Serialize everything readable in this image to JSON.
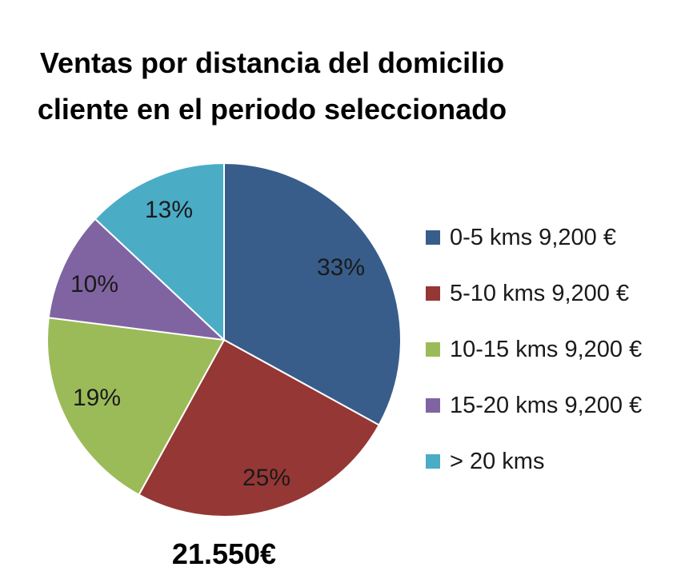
{
  "chart_data": {
    "type": "pie",
    "title_lines": [
      "Ventas por distancia del domicilio",
      "cliente en el periodo seleccionado"
    ],
    "total_label": "21.550€",
    "slices": [
      {
        "name": "0-5 kms 9,200 €",
        "value": 33,
        "label": "33%",
        "color": "#385D8A"
      },
      {
        "name": "5-10 kms 9,200 €",
        "value": 25,
        "label": "25%",
        "color": "#953735"
      },
      {
        "name": "10-15 kms 9,200 €",
        "value": 19,
        "label": "19%",
        "color": "#9BBB59"
      },
      {
        "name": "15-20 kms 9,200 €",
        "value": 10,
        "label": "10%",
        "color": "#8064A2"
      },
      {
        "name": "> 20 kms",
        "value": 13,
        "label": "13%",
        "color": "#4BACC6"
      }
    ],
    "start_angle": "12 o'clock",
    "direction": "clockwise",
    "legend_position": "right"
  }
}
